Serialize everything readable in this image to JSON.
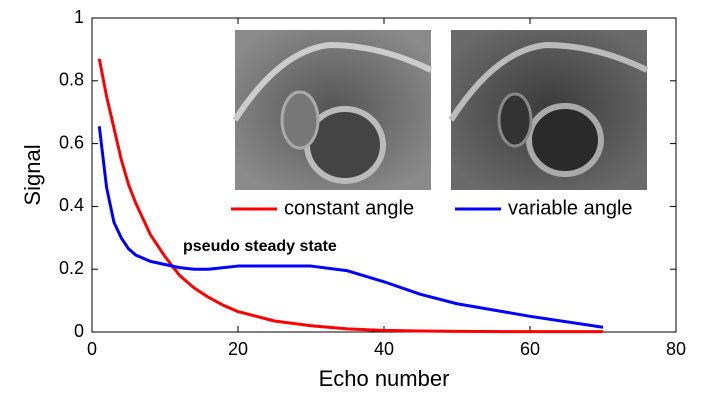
{
  "chart_data": {
    "type": "line",
    "xlabel": "Echo number",
    "ylabel": "Signal",
    "annotation": "pseudo steady state",
    "x": [
      1,
      2,
      3,
      4,
      5,
      6,
      8,
      10,
      12,
      14,
      16,
      18,
      20,
      25,
      30,
      35,
      40,
      45,
      50,
      60,
      70
    ],
    "series": [
      {
        "name": "constant angle",
        "color": "#ff0000",
        "values": [
          0.87,
          0.75,
          0.65,
          0.55,
          0.47,
          0.41,
          0.31,
          0.24,
          0.18,
          0.14,
          0.11,
          0.085,
          0.065,
          0.035,
          0.02,
          0.01,
          0.005,
          0.003,
          0.002,
          0.001,
          0.001
        ]
      },
      {
        "name": "variable angle",
        "color": "#0000ff",
        "values": [
          0.655,
          0.46,
          0.35,
          0.3,
          0.265,
          0.245,
          0.225,
          0.215,
          0.205,
          0.2,
          0.2,
          0.205,
          0.21,
          0.21,
          0.21,
          0.195,
          0.16,
          0.12,
          0.09,
          0.05,
          0.015
        ]
      }
    ],
    "xlim": [
      0,
      80
    ],
    "xticks": [
      0,
      20,
      40,
      60,
      80
    ],
    "ylim": [
      0,
      1
    ],
    "yticks": [
      0,
      0.2,
      0.4,
      0.6,
      0.8,
      1
    ],
    "grid": false
  }
}
